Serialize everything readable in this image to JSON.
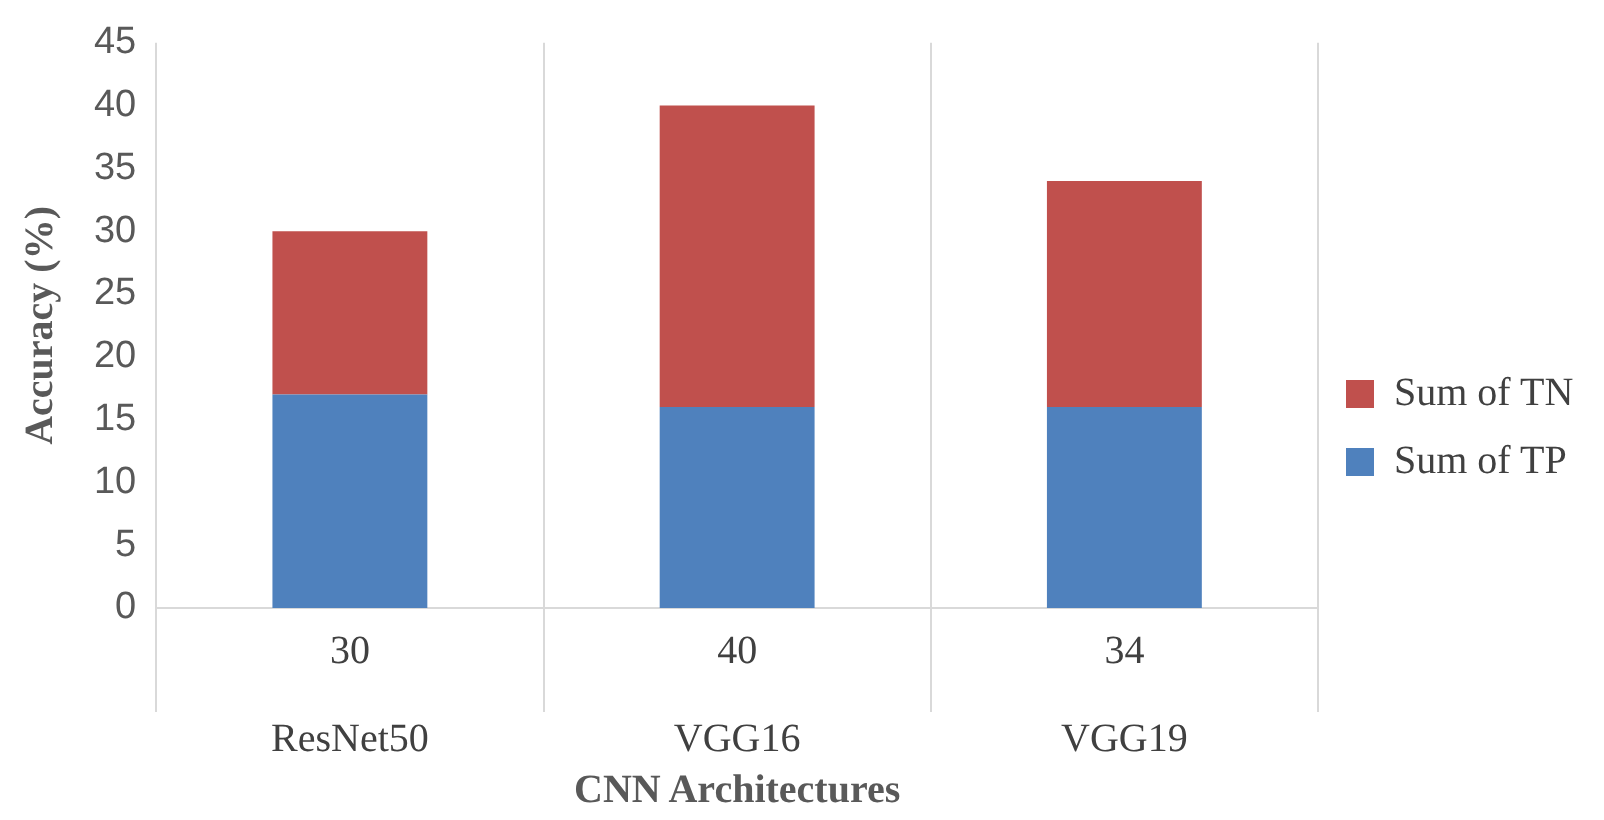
{
  "chart_data": {
    "type": "bar",
    "stacked": true,
    "xlabel": "CNN Architectures",
    "ylabel": "Accuracy (%)",
    "categories": [
      "ResNet50",
      "VGG16",
      "VGG19"
    ],
    "totals": [
      "30",
      "40",
      "34"
    ],
    "series": [
      {
        "name": "Sum of TP",
        "color": "#4f81bd",
        "values": [
          17,
          16,
          16
        ]
      },
      {
        "name": "Sum of TN",
        "color": "#c0504d",
        "values": [
          13,
          24,
          18
        ]
      }
    ],
    "ylim": [
      0,
      45
    ],
    "yticks": [
      0,
      5,
      10,
      15,
      20,
      25,
      30,
      35,
      40,
      45
    ],
    "grid": "x",
    "legend": "right"
  }
}
